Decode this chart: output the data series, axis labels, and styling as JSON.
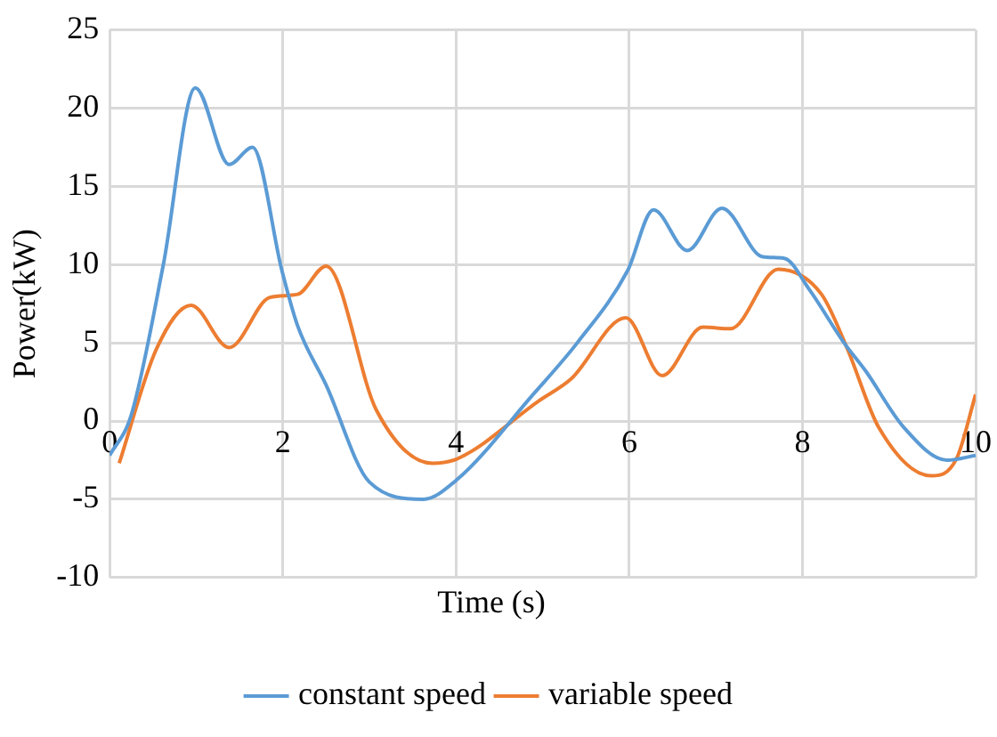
{
  "chart_data": {
    "type": "line",
    "xlabel": "Time (s)",
    "ylabel": "Power(kW)",
    "xlim": [
      0,
      10
    ],
    "xticks": [
      0,
      2,
      4,
      6,
      8,
      10
    ],
    "ylim": [
      -10,
      25
    ],
    "yticks": [
      -10,
      -5,
      0,
      5,
      10,
      15,
      20,
      25
    ],
    "grid": true,
    "legend": "bottom",
    "marker": "none",
    "series": [
      {
        "name": "constant speed",
        "color": "#5b9bd5",
        "x": [
          0,
          0.25,
          0.62,
          0.99,
          1.38,
          1.65,
          1.99,
          2.17,
          2.5,
          3.0,
          3.62,
          4.02,
          4.89,
          5.4,
          5.98,
          6.28,
          6.67,
          7.07,
          7.54,
          7.79,
          8.08,
          8.48,
          8.73,
          9.17,
          9.67,
          10
        ],
        "values": [
          -2.2,
          0.4,
          10,
          21.3,
          16.4,
          17.5,
          9.6,
          6.1,
          2.3,
          -3.9,
          -5.0,
          -3.7,
          1.7,
          5.0,
          9.6,
          13.5,
          10.9,
          13.6,
          10.5,
          10.4,
          8.4,
          5.0,
          3.2,
          -0.4,
          -2.5,
          -2.2
        ]
      },
      {
        "name": "variable speed",
        "color": "#ed7d31",
        "x": [
          0.11,
          0.54,
          0.94,
          1.38,
          1.85,
          2.17,
          2.5,
          3.08,
          3.73,
          4.02,
          4.96,
          5.33,
          5.96,
          6.38,
          6.85,
          7.17,
          7.72,
          8.22,
          8.52,
          8.88,
          9.49,
          9.78,
          10
        ],
        "values": [
          -2.7,
          4.6,
          7.4,
          4.7,
          7.9,
          8.1,
          9.9,
          0.7,
          -2.7,
          -2.4,
          1.3,
          2.7,
          6.6,
          2.9,
          6.0,
          5.9,
          9.7,
          8.1,
          4.6,
          -0.4,
          -3.5,
          -2.4,
          1.7
        ]
      }
    ]
  }
}
